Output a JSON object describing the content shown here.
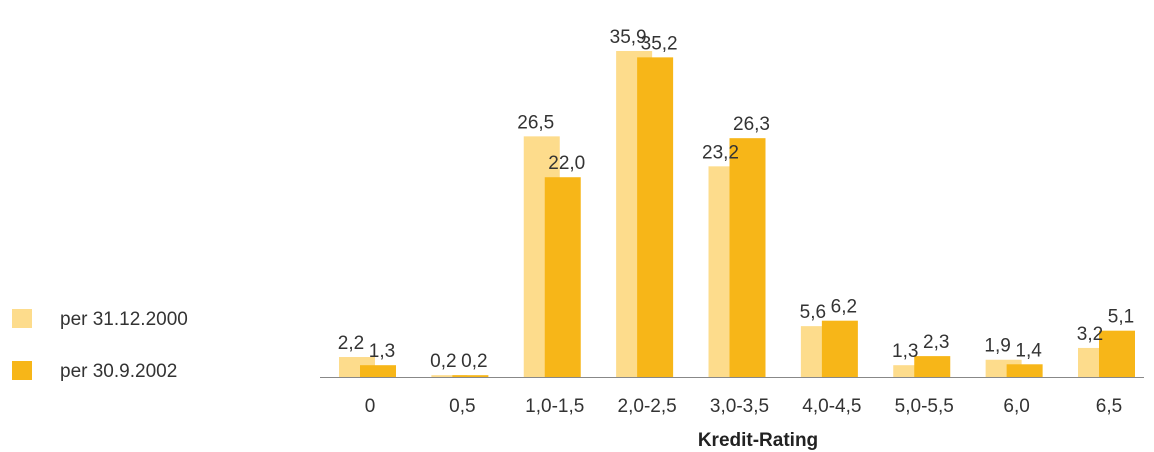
{
  "chart_data": {
    "type": "bar",
    "categories": [
      "0",
      "0,5",
      "1,0-1,5",
      "2,0-2,5",
      "3,0-3,5",
      "4,0-4,5",
      "5,0-5,5",
      "6,0",
      "6,5"
    ],
    "series": [
      {
        "name": "per 31.12.2000",
        "color": "#fddc8c",
        "values": [
          2.2,
          0.2,
          26.5,
          35.9,
          23.2,
          5.6,
          1.3,
          1.9,
          3.2
        ],
        "labels": [
          "2,2",
          "0,2",
          "26,5",
          "35,9",
          "23,2",
          "5,6",
          "1,3",
          "1,9",
          "3,2"
        ]
      },
      {
        "name": "per 30.9.2002",
        "color": "#f7b618",
        "values": [
          1.3,
          0.2,
          22.0,
          35.2,
          26.3,
          6.2,
          2.3,
          1.4,
          5.1
        ],
        "labels": [
          "1,3",
          "0,2",
          "22,0",
          "35,2",
          "26,3",
          "6,2",
          "2,3",
          "1,4",
          "5,1"
        ]
      }
    ],
    "xlabel": "Kredit-Rating",
    "ylabel": "",
    "ylim": [
      0,
      35.9
    ],
    "legend_position": "left",
    "grid": false
  }
}
